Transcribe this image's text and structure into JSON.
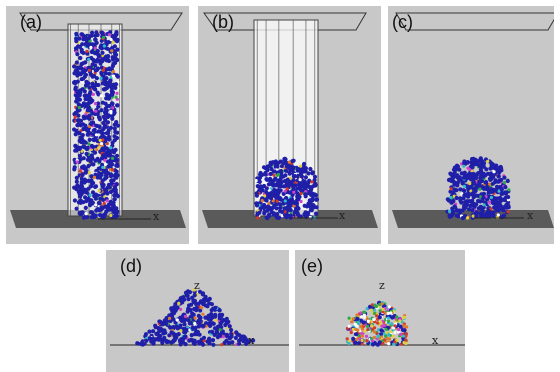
{
  "panels": [
    {
      "id": "a",
      "label": "(a)",
      "axis_labels": [
        "x"
      ]
    },
    {
      "id": "b",
      "label": "(b)",
      "axis_labels": [
        "x"
      ]
    },
    {
      "id": "c",
      "label": "(c)",
      "axis_labels": [
        "x"
      ]
    },
    {
      "id": "d",
      "label": "(d)",
      "axis_labels": [
        "z",
        "x"
      ]
    },
    {
      "id": "e",
      "label": "(e)",
      "axis_labels": [
        "z",
        "x"
      ]
    }
  ],
  "colors": {
    "background": "#c8c8c8",
    "particles_main": "#1f1fa8",
    "particles_accent": [
      "#d43a2a",
      "#2fa84a",
      "#e0d040",
      "#cc44cc",
      "#33bbcc",
      "#ffffff",
      "#e07b2a"
    ],
    "base_plate": "#5a5a5a",
    "cylinder_edge": "#444444",
    "cylinder_fill": "#ffffff"
  }
}
